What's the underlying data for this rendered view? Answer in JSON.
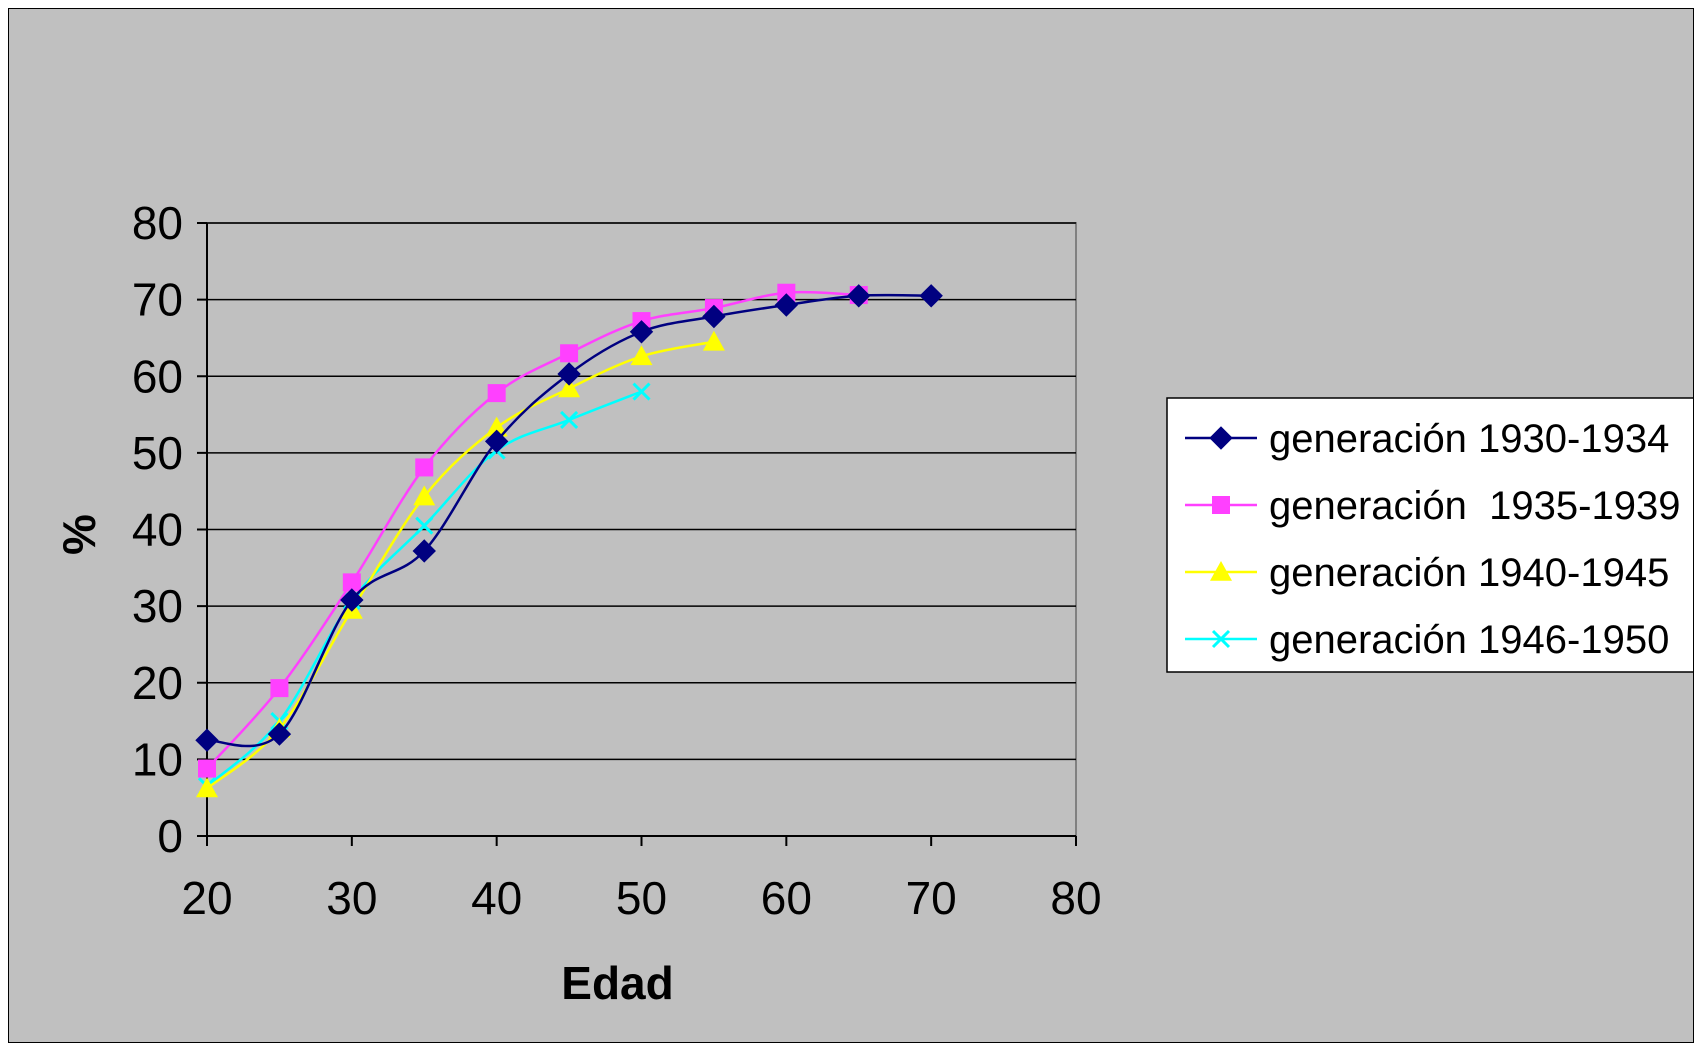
{
  "chart_data": {
    "type": "line",
    "xlabel": "Edad",
    "ylabel": "%",
    "xlim": [
      20,
      80
    ],
    "ylim": [
      0,
      80
    ],
    "xticks": [
      20,
      30,
      40,
      50,
      60,
      70,
      80
    ],
    "yticks": [
      0,
      10,
      20,
      30,
      40,
      50,
      60,
      70,
      80
    ],
    "grid": "horizontal",
    "legend": "right",
    "series": [
      {
        "name": "generación 1930-1934",
        "color": "#000080",
        "marker": "diamond",
        "x": [
          20,
          25,
          30,
          35,
          40,
          45,
          50,
          55,
          60,
          65,
          70
        ],
        "y": [
          12.5,
          13.3,
          30.8,
          37.2,
          51.5,
          60.3,
          65.8,
          67.8,
          69.3,
          70.5,
          70.5
        ]
      },
      {
        "name": "generación  1935-1939",
        "color": "#ff40ff",
        "marker": "square",
        "x": [
          20,
          25,
          30,
          35,
          40,
          45,
          50,
          55,
          60,
          65
        ],
        "y": [
          8.8,
          19.3,
          33.1,
          48.1,
          57.8,
          63.0,
          67.2,
          68.9,
          70.9,
          70.6
        ]
      },
      {
        "name": "generación 1940-1945",
        "color": "#ffff00",
        "marker": "triangle",
        "x": [
          20,
          25,
          30,
          35,
          40,
          45,
          50,
          55
        ],
        "y": [
          6.2,
          14.0,
          29.5,
          44.3,
          53.3,
          58.4,
          62.6,
          64.5
        ]
      },
      {
        "name": "generación 1946-1950",
        "color": "#00ffff",
        "marker": "x",
        "x": [
          20,
          25,
          30,
          35,
          40,
          45,
          50
        ],
        "y": [
          6.5,
          15.0,
          30.7,
          40.5,
          50.3,
          54.3,
          58.0
        ]
      }
    ]
  }
}
